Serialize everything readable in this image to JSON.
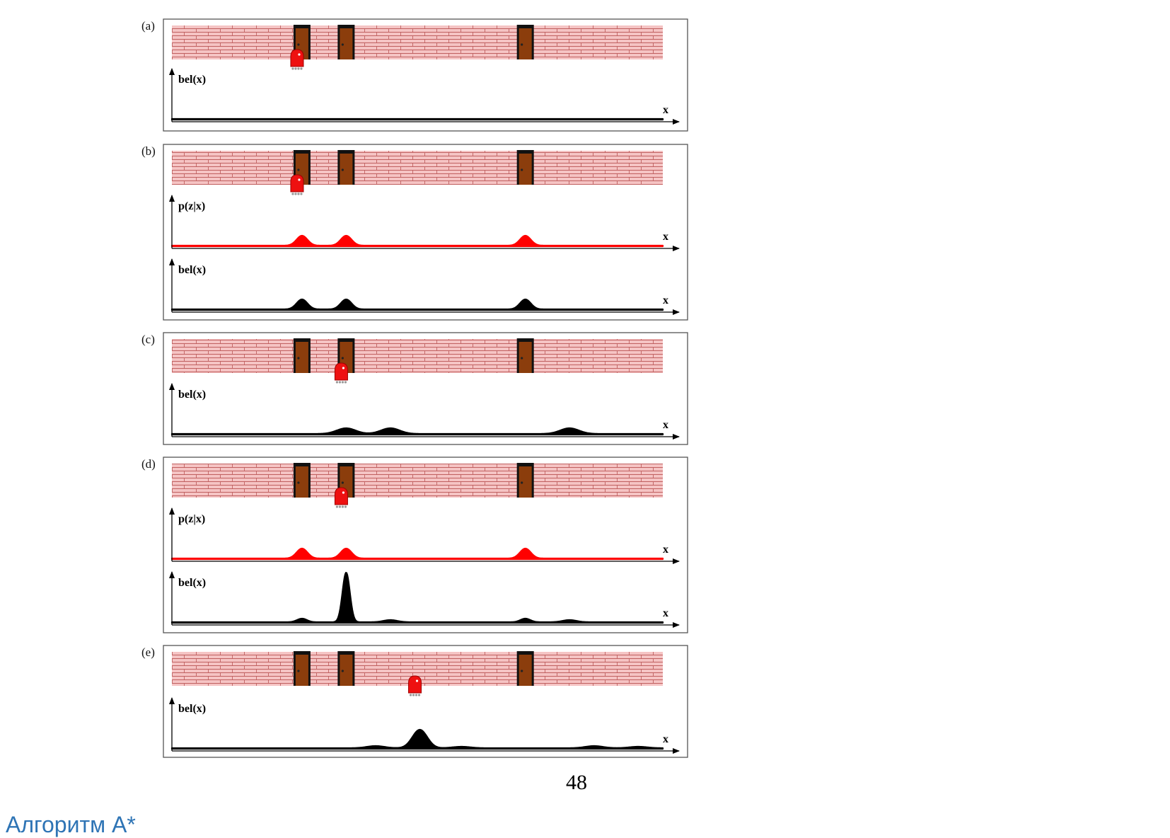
{
  "figure": {
    "world": {
      "length": 100,
      "door_positions": [
        26.5,
        35.5,
        72.0
      ],
      "colors": {
        "brick": "#f5c4c4",
        "mortar": "#c06060",
        "door": "#8b3d0c",
        "door_frame": "#111111",
        "robot": "#ee1111"
      }
    },
    "panels": [
      {
        "label": "(a)",
        "robot_x": 25.5,
        "plots": [
          {
            "ylabel": "bel(x)",
            "xlabel": "x",
            "color": "#000000",
            "baseline": 1.0,
            "bumps": []
          }
        ]
      },
      {
        "label": "(b)",
        "robot_x": 25.5,
        "plots": [
          {
            "ylabel": "p(z|x)",
            "xlabel": "x",
            "color": "#ff0000",
            "baseline": 1.0,
            "bumps": [
              {
                "x": 26.5,
                "h": 14,
                "w": 1.1
              },
              {
                "x": 35.5,
                "h": 14,
                "w": 1.1
              },
              {
                "x": 72.0,
                "h": 14,
                "w": 1.1
              }
            ]
          },
          {
            "ylabel": "bel(x)",
            "xlabel": "x",
            "color": "#000000",
            "baseline": 1.0,
            "bumps": [
              {
                "x": 26.5,
                "h": 14,
                "w": 1.1
              },
              {
                "x": 35.5,
                "h": 14,
                "w": 1.1
              },
              {
                "x": 72.0,
                "h": 14,
                "w": 1.1
              }
            ]
          }
        ]
      },
      {
        "label": "(c)",
        "robot_x": 34.5,
        "plots": [
          {
            "ylabel": "bel(x)",
            "xlabel": "x",
            "color": "#000000",
            "baseline": 1.0,
            "bumps": [
              {
                "x": 35.5,
                "h": 8,
                "w": 1.9
              },
              {
                "x": 44.5,
                "h": 8,
                "w": 1.9
              },
              {
                "x": 81.0,
                "h": 8,
                "w": 1.9
              }
            ]
          }
        ]
      },
      {
        "label": "(d)",
        "robot_x": 34.5,
        "plots": [
          {
            "ylabel": "p(z|x)",
            "xlabel": "x",
            "color": "#ff0000",
            "baseline": 1.0,
            "bumps": [
              {
                "x": 26.5,
                "h": 14,
                "w": 1.1
              },
              {
                "x": 35.5,
                "h": 14,
                "w": 1.1
              },
              {
                "x": 72.0,
                "h": 14,
                "w": 1.1
              }
            ]
          },
          {
            "ylabel": "bel(x)",
            "xlabel": "x",
            "color": "#000000",
            "baseline": 1.0,
            "bumps": [
              {
                "x": 26.5,
                "h": 5,
                "w": 1.0
              },
              {
                "x": 35.5,
                "h": 70,
                "w": 0.75
              },
              {
                "x": 44.5,
                "h": 3,
                "w": 1.4
              },
              {
                "x": 72.0,
                "h": 5,
                "w": 1.0
              },
              {
                "x": 81.0,
                "h": 3,
                "w": 1.4
              }
            ]
          }
        ]
      },
      {
        "label": "(e)",
        "robot_x": 49.5,
        "plots": [
          {
            "ylabel": "bel(x)",
            "xlabel": "x",
            "color": "#000000",
            "baseline": 1.0,
            "bumps": [
              {
                "x": 41.5,
                "h": 3,
                "w": 1.8
              },
              {
                "x": 50.5,
                "h": 26,
                "w": 1.5
              },
              {
                "x": 59.0,
                "h": 2,
                "w": 1.8
              },
              {
                "x": 86.0,
                "h": 3,
                "w": 1.8
              },
              {
                "x": 95.0,
                "h": 2,
                "w": 1.8
              }
            ]
          }
        ]
      }
    ]
  },
  "page_number": "48",
  "heading": "Алгоритм A*"
}
